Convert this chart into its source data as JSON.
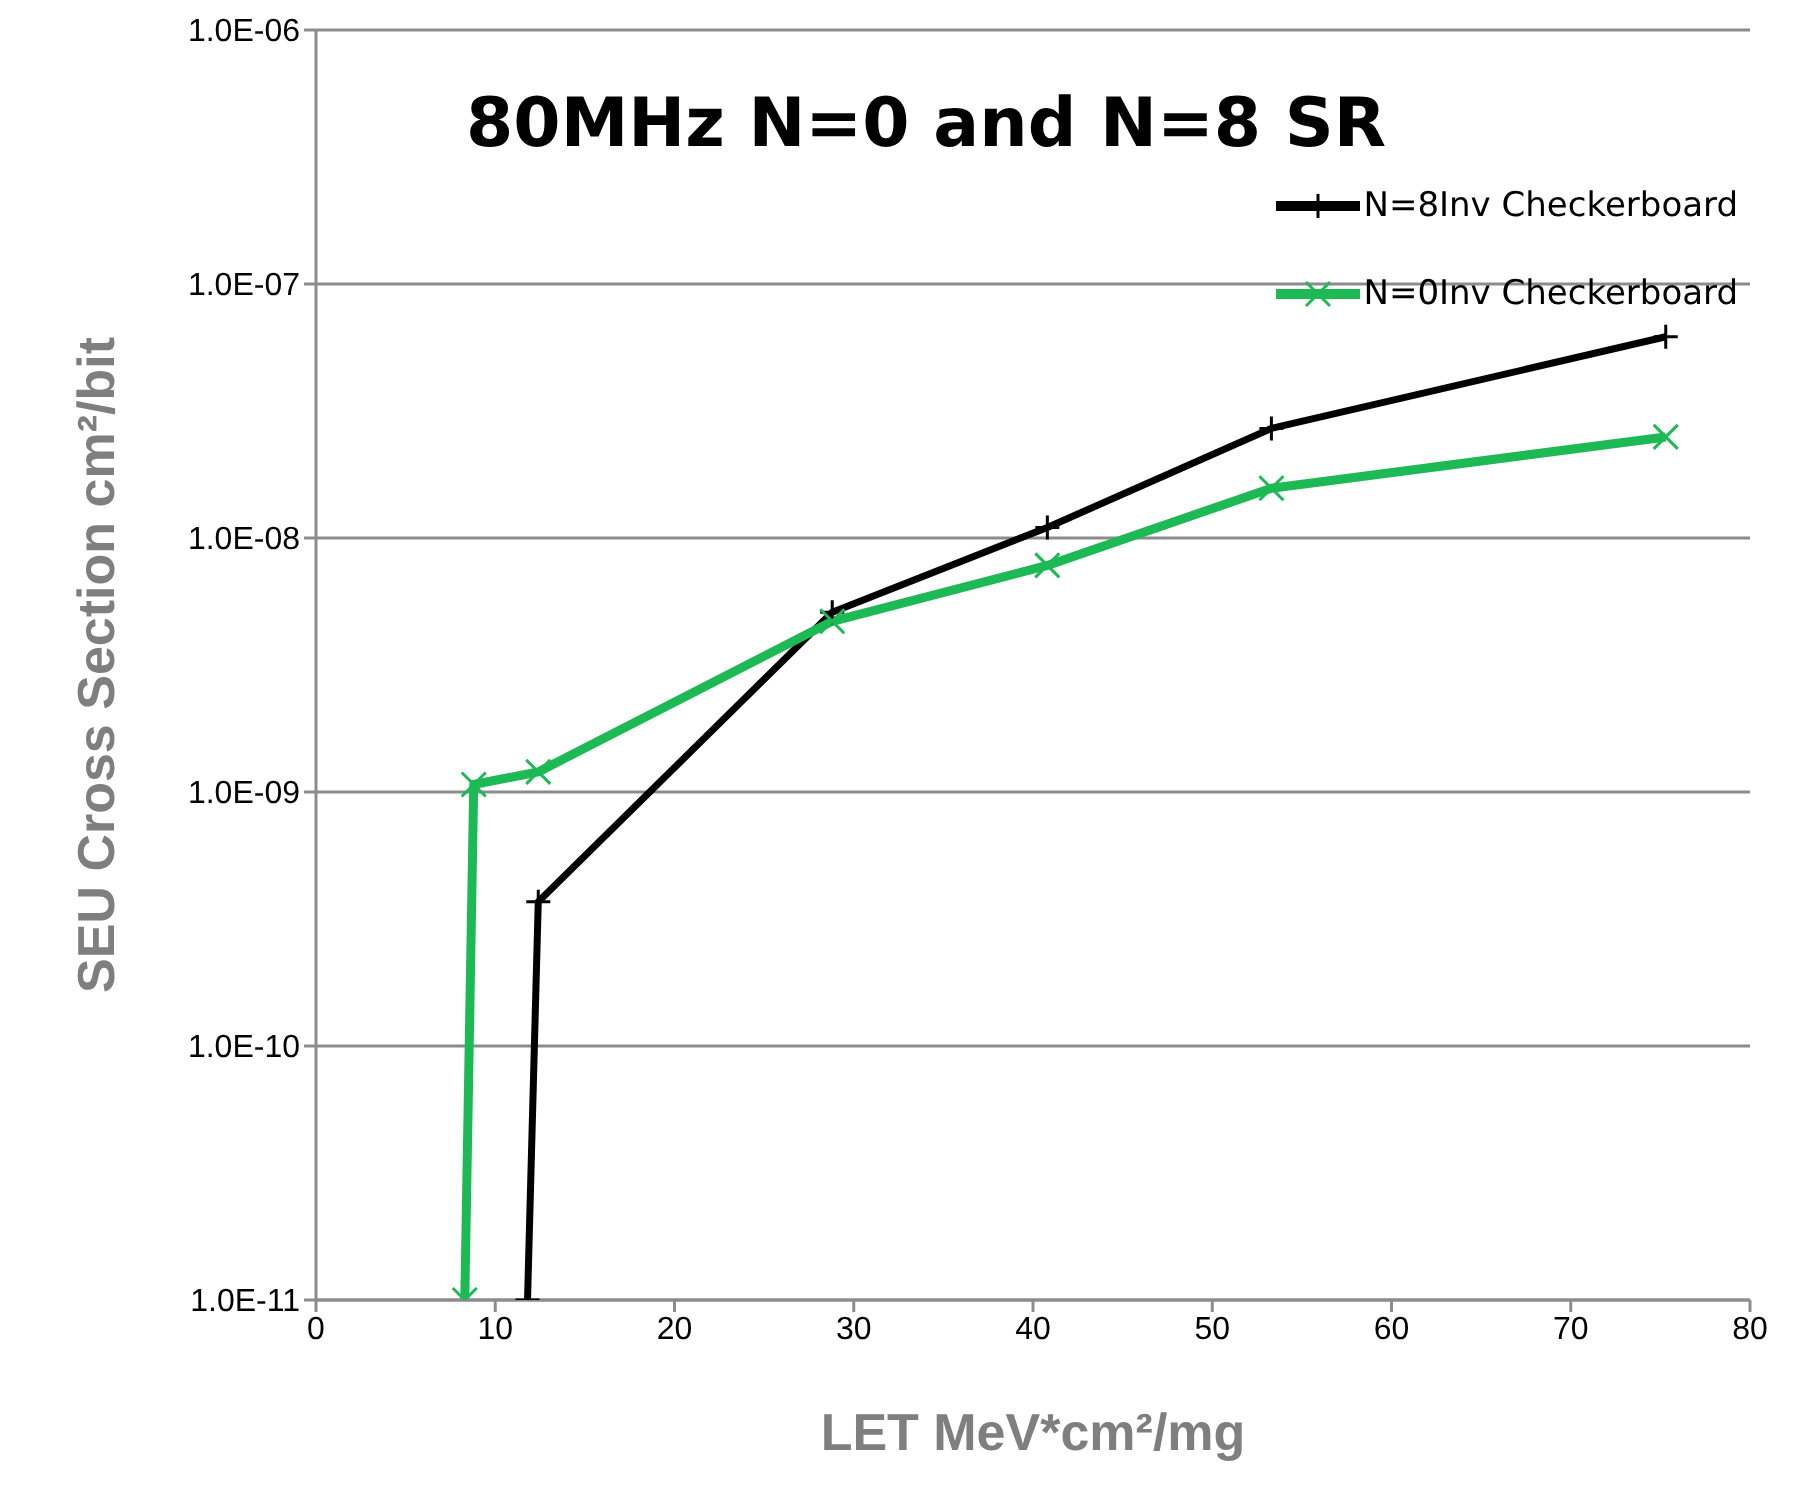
{
  "chart_data": {
    "type": "line",
    "title": "80MHz N=0 and N=8 SR",
    "xlabel": "LET MeV*cm²/mg",
    "ylabel": "SEU Cross Section cm²/bit",
    "log": "y",
    "grid": "y",
    "legend": "top right",
    "xlim": [
      0,
      80
    ],
    "xticks": [
      0,
      10,
      20,
      30,
      40,
      50,
      60,
      70,
      80
    ],
    "ylim": [
      1e-11,
      1e-06
    ],
    "yticks": [
      {
        "value": 1e-11,
        "label": "1.0E-11"
      },
      {
        "value": 1e-10,
        "label": "1.0E-10"
      },
      {
        "value": 1e-09,
        "label": "1.0E-09"
      },
      {
        "value": 1e-08,
        "label": "1.0E-08"
      },
      {
        "value": 1e-07,
        "label": "1.0E-07"
      },
      {
        "value": 1e-06,
        "label": "1.0E-06"
      }
    ],
    "series": [
      {
        "name": "N=8Inv Checkerboard",
        "color": "#000000",
        "marker": "plus",
        "x": [
          11.8,
          12.4,
          28.8,
          40.8,
          53.3,
          75.3
        ],
        "values": [
          1e-11,
          3.7e-10,
          5.1e-09,
          1.1e-08,
          2.7e-08,
          6.2e-08
        ]
      },
      {
        "name": "N=0Inv Checkerboard",
        "color": "#1db954",
        "marker": "cross",
        "x": [
          8.3,
          8.8,
          12.4,
          28.8,
          40.8,
          53.3,
          75.3
        ],
        "values": [
          1e-11,
          1.07e-09,
          1.2e-09,
          4.7e-09,
          7.8e-09,
          1.57e-08,
          2.5e-08
        ]
      }
    ]
  }
}
